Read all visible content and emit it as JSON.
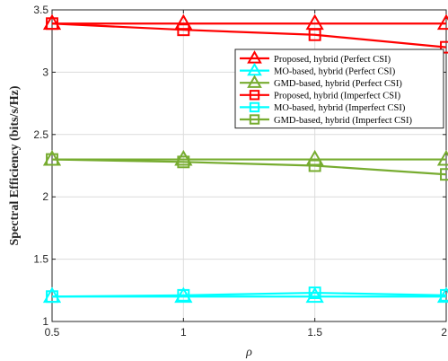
{
  "chart_data": {
    "type": "line",
    "xlabel": "ρ",
    "ylabel": "Spectral Efficiency (bits/s/Hz)",
    "x": [
      0.5,
      1,
      1.5,
      2
    ],
    "xlim": [
      0.5,
      2
    ],
    "ylim": [
      1,
      3.5
    ],
    "xticks": [
      0.5,
      1,
      1.5,
      2
    ],
    "xtick_labels": [
      "0.5",
      "1",
      "1.5",
      "2"
    ],
    "yticks": [
      1,
      1.5,
      2,
      2.5,
      3,
      3.5
    ],
    "ytick_labels": [
      "1",
      "1.5",
      "2",
      "2.5",
      "3",
      "3.5"
    ],
    "grid": true,
    "legend_position": "top-right",
    "series": [
      {
        "name": "Proposed, hybrid (Perfect CSI)",
        "values": [
          3.39,
          3.39,
          3.39,
          3.39
        ],
        "color": "#ff0000",
        "marker": "triangle"
      },
      {
        "name": "MO-based, hybrid (Perfect CSI)",
        "values": [
          1.2,
          1.2,
          1.2,
          1.2
        ],
        "color": "#00ffff",
        "marker": "triangle"
      },
      {
        "name": "GMD-based, hybrid (Perfect CSI)",
        "values": [
          2.3,
          2.3,
          2.3,
          2.3
        ],
        "color": "#77ac30",
        "marker": "triangle"
      },
      {
        "name": "Proposed, hybrid (Imperfect CSI)",
        "values": [
          3.39,
          3.34,
          3.3,
          3.2
        ],
        "color": "#ff0000",
        "marker": "square"
      },
      {
        "name": "MO-based, hybrid (Imperfect CSI)",
        "values": [
          1.2,
          1.21,
          1.23,
          1.21
        ],
        "color": "#00ffff",
        "marker": "square"
      },
      {
        "name": "GMD-based, hybrid (Imperfect CSI)",
        "values": [
          2.3,
          2.28,
          2.25,
          2.18
        ],
        "color": "#77ac30",
        "marker": "square"
      }
    ]
  }
}
